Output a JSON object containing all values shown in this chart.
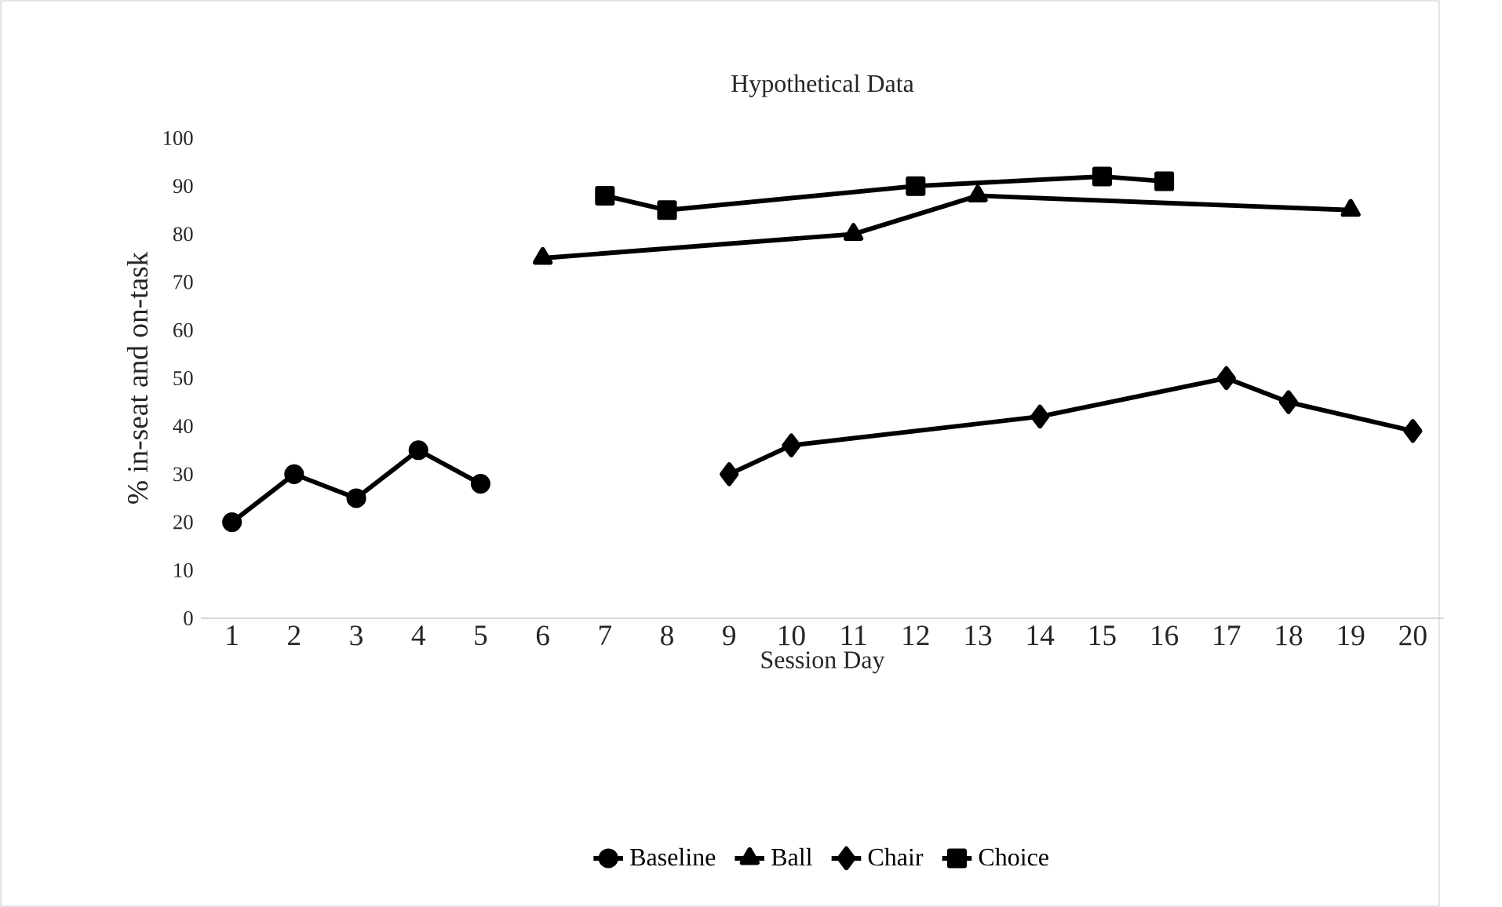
{
  "chart_data": {
    "type": "line",
    "title": "Hypothetical Data",
    "xlabel": "Session Day",
    "ylabel": "% in-seat and on-task",
    "categories": [
      "1",
      "2",
      "3",
      "4",
      "5",
      "6",
      "7",
      "8",
      "9",
      "10",
      "11",
      "12",
      "13",
      "14",
      "15",
      "16",
      "17",
      "18",
      "19",
      "20"
    ],
    "series": [
      {
        "name": "Baseline",
        "color": "#000000",
        "marker": "circle",
        "values": [
          20,
          30,
          25,
          35,
          28,
          null,
          null,
          null,
          null,
          null,
          null,
          null,
          null,
          null,
          null,
          null,
          null,
          null,
          null,
          null
        ]
      },
      {
        "name": "Ball",
        "color": "#000000",
        "marker": "triangle",
        "values": [
          null,
          null,
          null,
          null,
          null,
          75,
          null,
          null,
          null,
          null,
          80,
          null,
          88,
          null,
          null,
          null,
          null,
          null,
          85,
          null
        ]
      },
      {
        "name": "Chair",
        "color": "#000000",
        "marker": "diamond",
        "values": [
          null,
          null,
          null,
          null,
          null,
          null,
          null,
          null,
          30,
          36,
          null,
          null,
          null,
          42,
          null,
          null,
          50,
          45,
          null,
          39
        ]
      },
      {
        "name": "Choice",
        "color": "#000000",
        "marker": "square",
        "values": [
          null,
          null,
          null,
          null,
          null,
          null,
          88,
          85,
          null,
          null,
          null,
          90,
          null,
          null,
          92,
          91,
          null,
          null,
          null,
          null
        ]
      }
    ],
    "ylim": [
      0,
      100
    ],
    "yticks": [
      0,
      10,
      20,
      30,
      40,
      50,
      60,
      70,
      80,
      90,
      100
    ],
    "grid": false,
    "legend": "bottom",
    "line_style": "solid"
  }
}
